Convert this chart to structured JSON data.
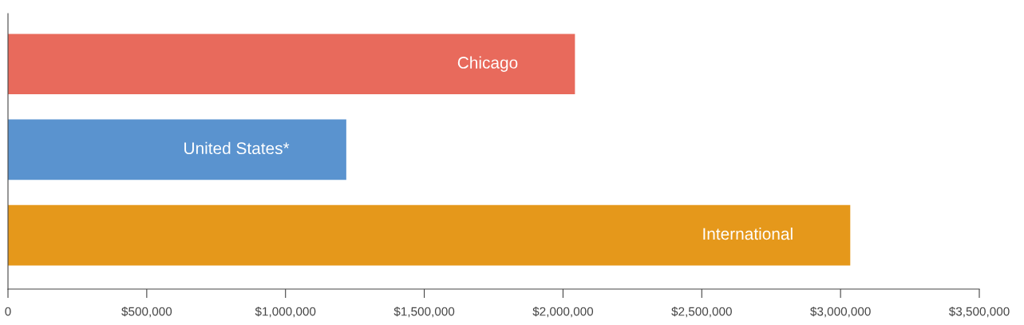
{
  "chart_data": {
    "type": "bar",
    "orientation": "horizontal",
    "categories": [
      "Chicago",
      "United States*",
      "International"
    ],
    "values": [
      2043000,
      1219000,
      3035000
    ],
    "colors": [
      "#e86a5c",
      "#5a93cf",
      "#e5981b"
    ],
    "xlim": [
      0,
      3500000
    ],
    "xticks": [
      0,
      {
        "value": 500000,
        "label": "$500,000"
      },
      {
        "value": 1000000,
        "label": "$1,000,000"
      },
      {
        "value": 1500000,
        "label": "$1,500,000"
      },
      {
        "value": 2000000,
        "label": "$2,000,000"
      },
      {
        "value": 2500000,
        "label": "$2,500,000"
      },
      {
        "value": 3000000,
        "label": "$3,000,000"
      },
      {
        "value": 3500000,
        "label": "$3,500,000"
      }
    ],
    "grid": false,
    "legend": false
  }
}
